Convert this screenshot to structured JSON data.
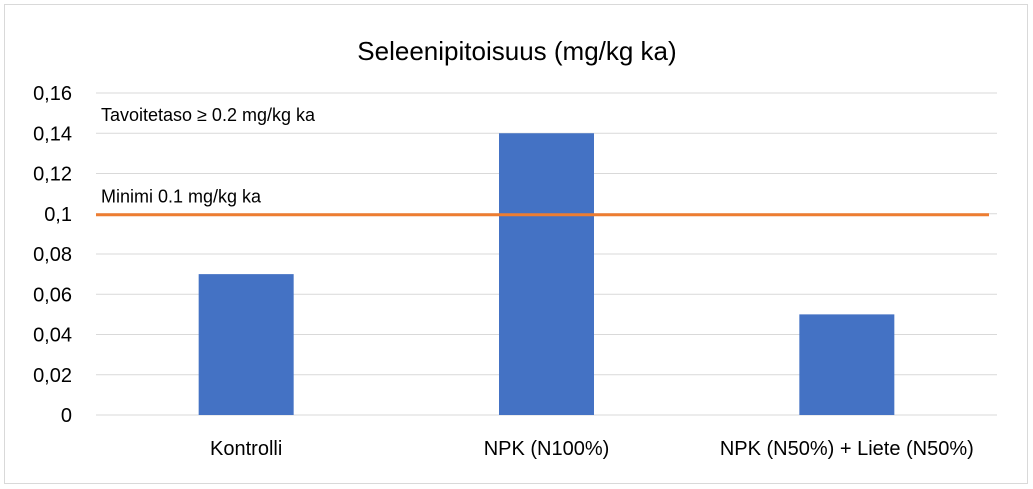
{
  "chart_data": {
    "type": "bar",
    "title": "Seleenipitoisuus (mg/kg ka)",
    "xlabel": "",
    "ylabel": "",
    "categories": [
      "Kontrolli",
      "NPK (N100%)",
      "NPK (N50%) + Liete (N50%)"
    ],
    "series": [
      {
        "values": [
          0.07,
          0.14,
          0.05
        ]
      }
    ],
    "ylim": [
      0,
      0.16
    ],
    "yticks": [
      0,
      0.02,
      0.04,
      0.06,
      0.08,
      0.1,
      0.12,
      0.14,
      0.16
    ],
    "ytick_labels": [
      "0",
      "0,02",
      "0,04",
      "0,06",
      "0,08",
      "0,1",
      "0,12",
      "0,14",
      "0,16"
    ],
    "grid": true,
    "reference_lines": [
      {
        "y": 0.0995,
        "color": "#ed7d31"
      }
    ],
    "annotations": [
      {
        "text": "Tavoitetaso ≥ 0.2 mg/kg ka",
        "y": 0.149
      },
      {
        "text": "Minimi 0.1 mg/kg ka",
        "y": 0.1085
      }
    ],
    "colors": {
      "bar": "#4472c4",
      "gridline": "#d9d9d9",
      "reference_line": "#ed7d31"
    }
  }
}
